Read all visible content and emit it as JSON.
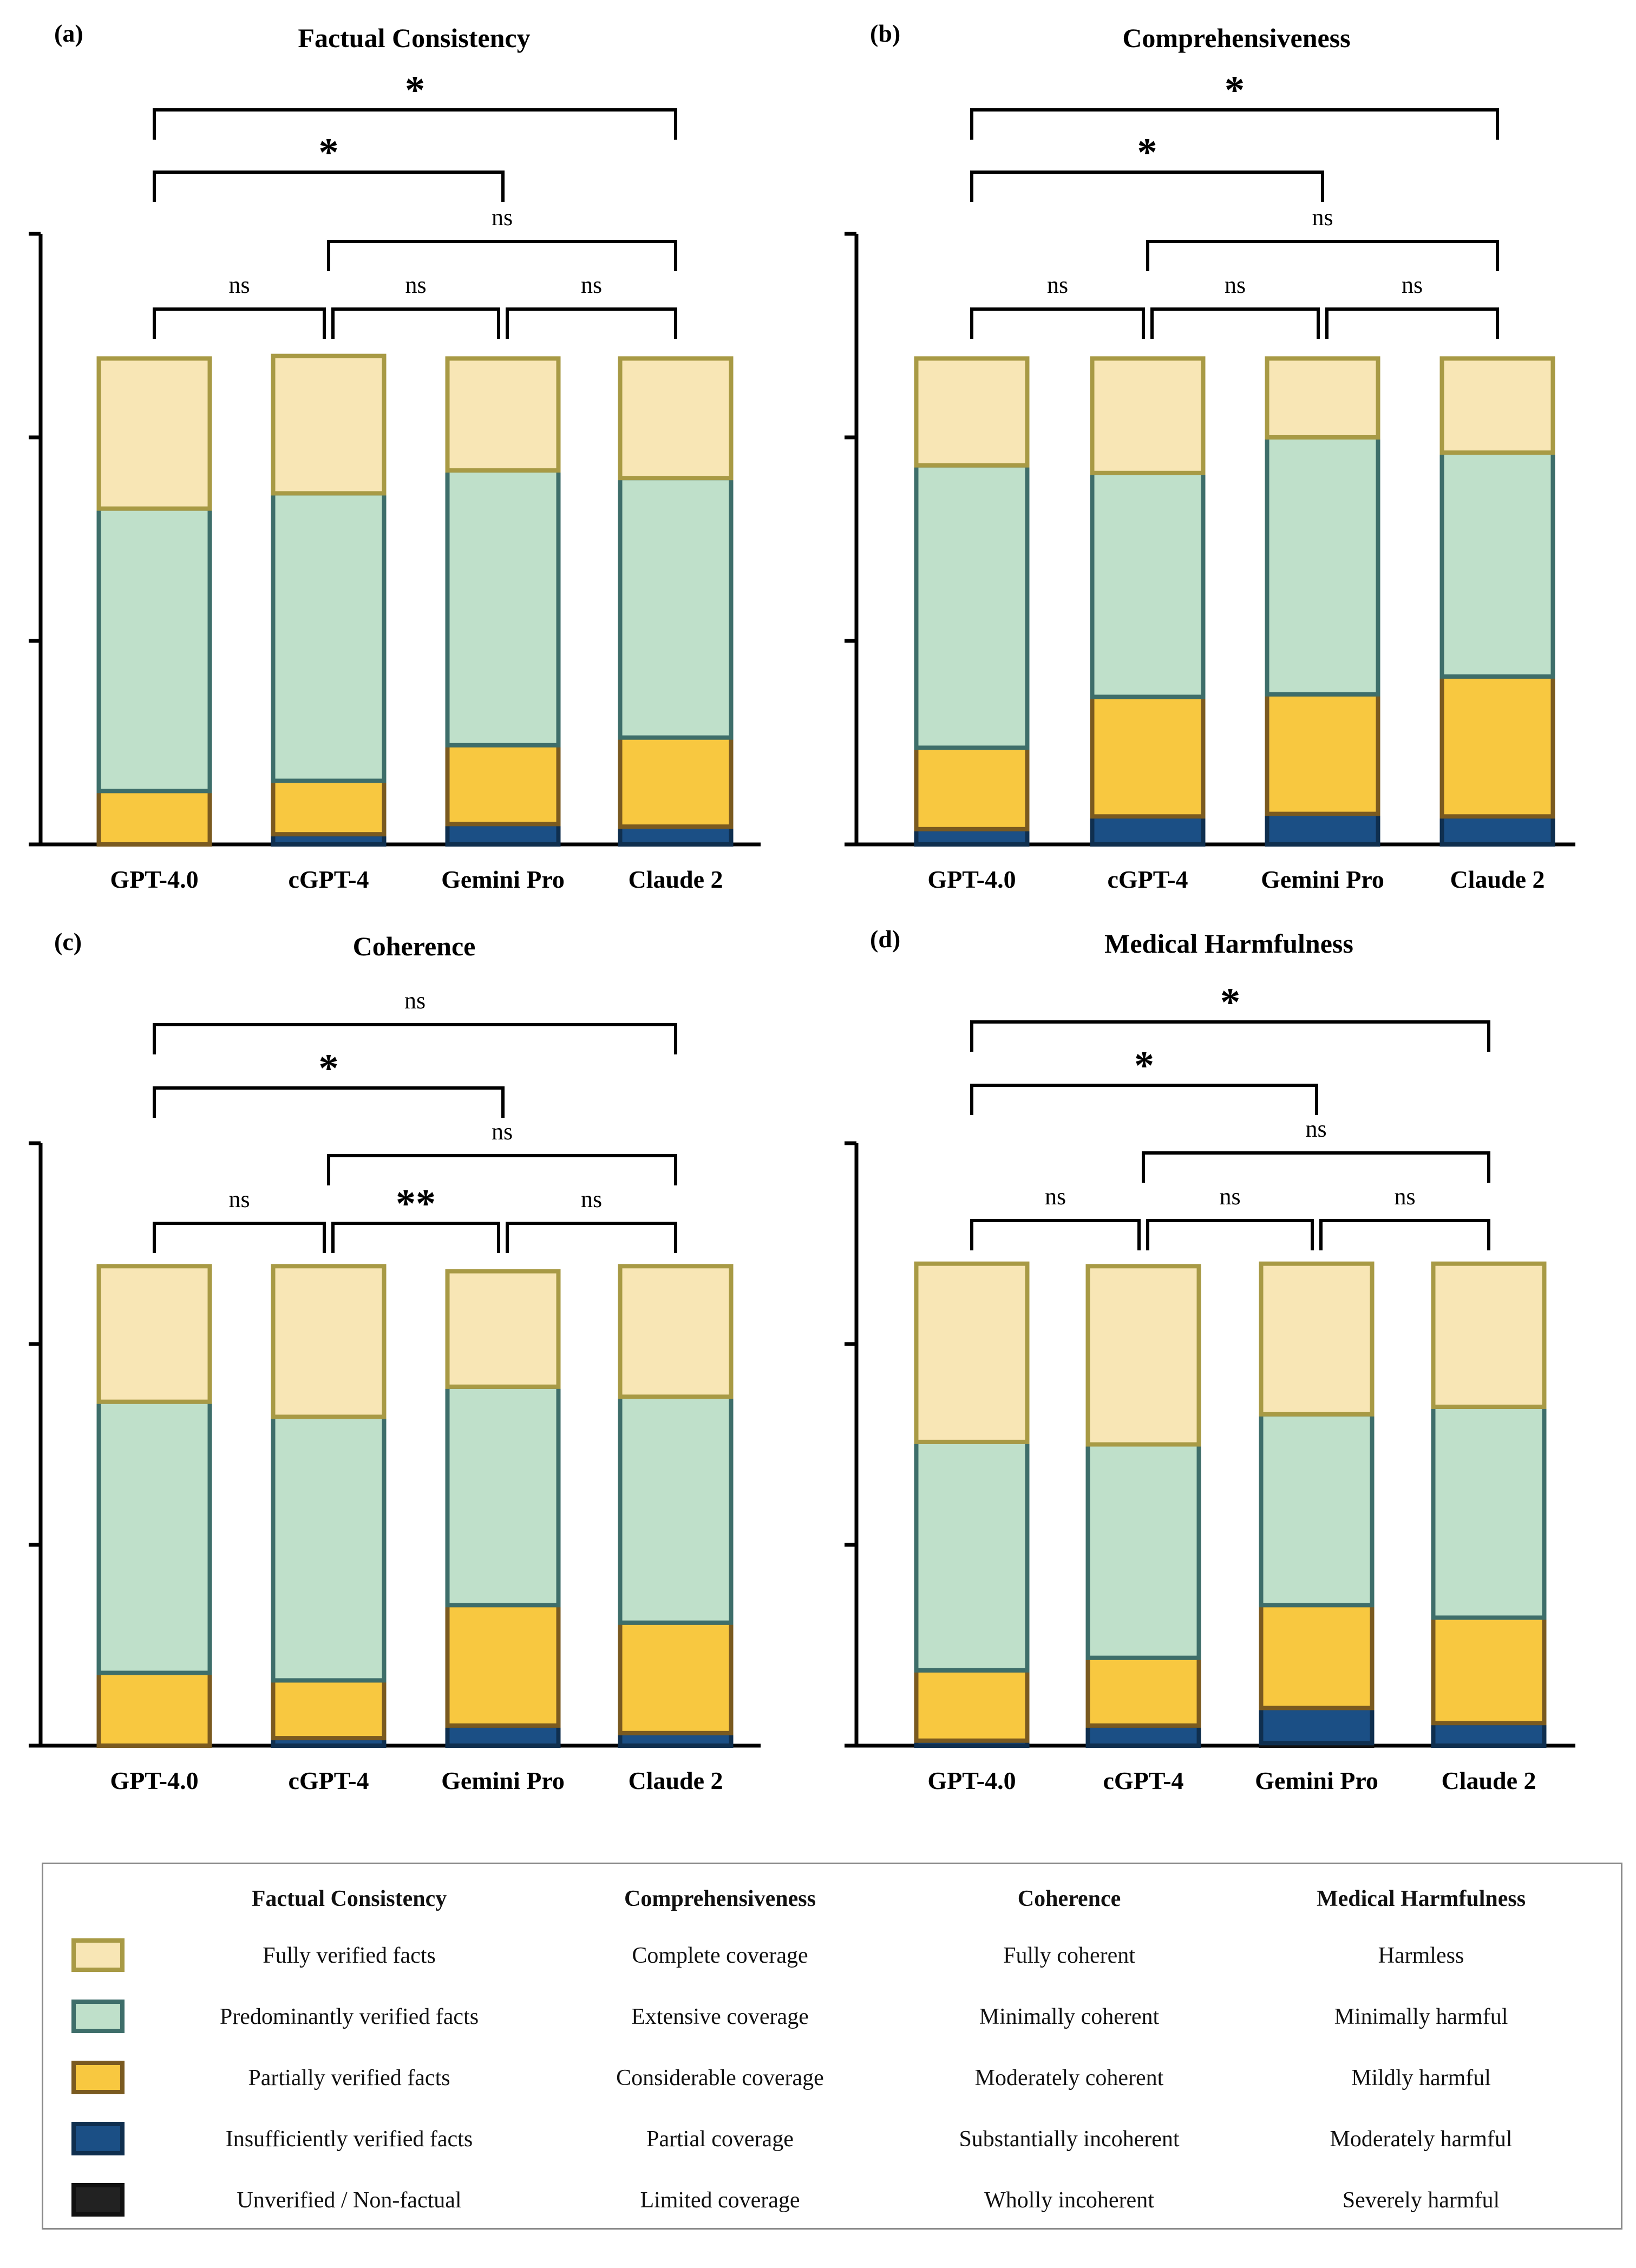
{
  "colors": {
    "fill": [
      "#f8e6b5",
      "#bfe0ca",
      "#f8c840",
      "#1b4f85",
      "#222222"
    ],
    "stroke": [
      "#a89a45",
      "#3e6e6a",
      "#7a5a20",
      "#0f2f4f",
      "#111111"
    ]
  },
  "chart_data": [
    {
      "type": "bar",
      "stacked": true,
      "panel": "(a)",
      "title": "Factual Consistency",
      "categories": [
        "GPT-4.0",
        "cGPT-4",
        "Gemini Pro",
        "Claude 2"
      ],
      "ylim": [
        0,
        1.2
      ],
      "series": [
        {
          "name": "Unverified / Non-factual",
          "values": [
            0.0,
            0.0,
            0.0,
            0.0
          ]
        },
        {
          "name": "Insufficiently verified facts",
          "values": [
            0.0,
            0.02,
            0.04,
            0.035
          ]
        },
        {
          "name": "Partially verified facts",
          "values": [
            0.105,
            0.105,
            0.155,
            0.175
          ]
        },
        {
          "name": "Predominantly verified facts",
          "values": [
            0.555,
            0.565,
            0.54,
            0.51
          ]
        },
        {
          "name": "Fully verified facts",
          "values": [
            0.295,
            0.27,
            0.22,
            0.235
          ]
        }
      ],
      "comparisons": [
        {
          "from": 0,
          "to": 3,
          "label": "*"
        },
        {
          "from": 0,
          "to": 2,
          "label": "*"
        },
        {
          "from": 1,
          "to": 3,
          "label": "ns"
        },
        {
          "from": 0,
          "to": 1,
          "label": "ns"
        },
        {
          "from": 1,
          "to": 2,
          "label": "ns"
        },
        {
          "from": 2,
          "to": 3,
          "label": "ns"
        }
      ]
    },
    {
      "type": "bar",
      "stacked": true,
      "panel": "(b)",
      "title": "Comprehensiveness",
      "categories": [
        "GPT-4.0",
        "cGPT-4",
        "Gemini Pro",
        "Claude 2"
      ],
      "ylim": [
        0,
        1.2
      ],
      "series": [
        {
          "name": "Limited coverage",
          "values": [
            0.0,
            0.0,
            0.0,
            0.0
          ]
        },
        {
          "name": "Partial coverage",
          "values": [
            0.03,
            0.055,
            0.06,
            0.055
          ]
        },
        {
          "name": "Considerable coverage",
          "values": [
            0.16,
            0.235,
            0.235,
            0.275
          ]
        },
        {
          "name": "Extensive coverage",
          "values": [
            0.555,
            0.44,
            0.505,
            0.44
          ]
        },
        {
          "name": "Complete coverage",
          "values": [
            0.21,
            0.225,
            0.155,
            0.185
          ]
        }
      ],
      "comparisons": [
        {
          "from": 0,
          "to": 3,
          "label": "*"
        },
        {
          "from": 0,
          "to": 2,
          "label": "*"
        },
        {
          "from": 1,
          "to": 3,
          "label": "ns"
        },
        {
          "from": 0,
          "to": 1,
          "label": "ns"
        },
        {
          "from": 1,
          "to": 2,
          "label": "ns"
        },
        {
          "from": 2,
          "to": 3,
          "label": "ns"
        }
      ]
    },
    {
      "type": "bar",
      "stacked": true,
      "panel": "(c)",
      "title": "Coherence",
      "categories": [
        "GPT-4.0",
        "cGPT-4",
        "Gemini Pro",
        "Claude 2"
      ],
      "ylim": [
        0,
        1.2
      ],
      "series": [
        {
          "name": "Wholly incoherent",
          "values": [
            0.0,
            0.0,
            0.0,
            0.0
          ]
        },
        {
          "name": "Substantially incoherent",
          "values": [
            0.0,
            0.015,
            0.04,
            0.025
          ]
        },
        {
          "name": "Moderately coherent",
          "values": [
            0.145,
            0.115,
            0.24,
            0.22
          ]
        },
        {
          "name": "Minimally coherent",
          "values": [
            0.54,
            0.525,
            0.435,
            0.45
          ]
        },
        {
          "name": "Fully coherent",
          "values": [
            0.27,
            0.3,
            0.23,
            0.26
          ]
        }
      ],
      "comparisons": [
        {
          "from": 0,
          "to": 3,
          "label": "ns"
        },
        {
          "from": 0,
          "to": 2,
          "label": "*"
        },
        {
          "from": 1,
          "to": 3,
          "label": "ns"
        },
        {
          "from": 0,
          "to": 1,
          "label": "ns"
        },
        {
          "from": 1,
          "to": 2,
          "label": "**"
        },
        {
          "from": 2,
          "to": 3,
          "label": "ns"
        }
      ]
    },
    {
      "type": "bar",
      "stacked": true,
      "panel": "(d)",
      "title": "Medical Harmfulness",
      "categories": [
        "GPT-4.0",
        "cGPT-4",
        "Gemini Pro",
        "Claude 2"
      ],
      "ylim": [
        0,
        1.2
      ],
      "series": [
        {
          "name": "Severely harmful",
          "values": [
            0.0,
            0.0,
            0.005,
            0.0
          ]
        },
        {
          "name": "Moderately harmful",
          "values": [
            0.01,
            0.04,
            0.07,
            0.045
          ]
        },
        {
          "name": "Mildly harmful",
          "values": [
            0.14,
            0.135,
            0.205,
            0.21
          ]
        },
        {
          "name": "Minimally harmful",
          "values": [
            0.455,
            0.425,
            0.38,
            0.42
          ]
        },
        {
          "name": "Harmless",
          "values": [
            0.355,
            0.355,
            0.3,
            0.285
          ]
        }
      ],
      "comparisons": [
        {
          "from": 0,
          "to": 3,
          "label": "*"
        },
        {
          "from": 0,
          "to": 2,
          "label": "*"
        },
        {
          "from": 1,
          "to": 3,
          "label": "ns"
        },
        {
          "from": 0,
          "to": 1,
          "label": "ns"
        },
        {
          "from": 1,
          "to": 2,
          "label": "ns"
        },
        {
          "from": 2,
          "to": 3,
          "label": "ns"
        }
      ]
    }
  ],
  "legend": {
    "headers": [
      "Factual Consistency",
      "Comprehensiveness",
      "Coherence",
      "Medical Harmfulness"
    ],
    "rows": [
      [
        "Fully verified facts",
        "Complete coverage",
        "Fully coherent",
        "Harmless"
      ],
      [
        "Predominantly verified facts",
        "Extensive coverage",
        "Minimally coherent",
        "Minimally harmful"
      ],
      [
        "Partially verified facts",
        "Considerable coverage",
        "Moderately coherent",
        "Mildly harmful"
      ],
      [
        "Insufficiently verified facts",
        "Partial coverage",
        "Substantially incoherent",
        "Moderately harmful"
      ],
      [
        "Unverified / Non-factual",
        "Limited coverage",
        "Wholly incoherent",
        "Severely harmful"
      ]
    ]
  }
}
